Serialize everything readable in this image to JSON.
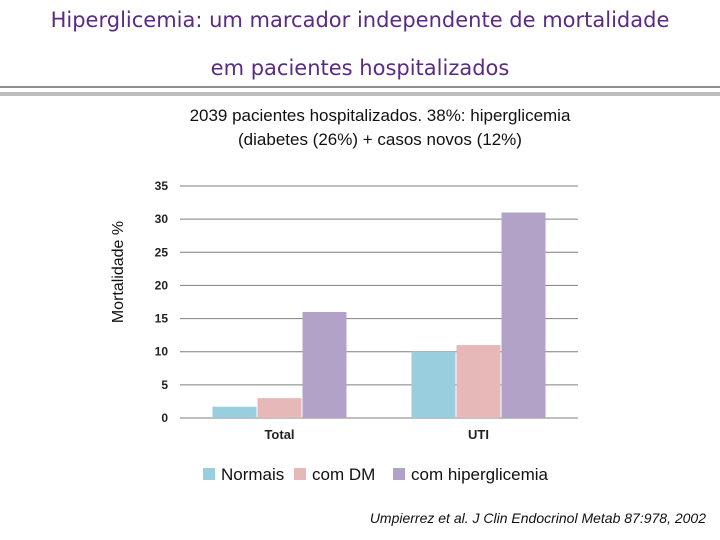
{
  "header": {
    "title_line1": "Hiperglicemia: um marcador independente de mortalidade",
    "title_line2": "em pacientes hospitalizados"
  },
  "subtitle": {
    "line1": "2039 pacientes hospitalizados. 38%: hiperglicemia",
    "line2": "(diabetes (26%) + casos novos (12%)"
  },
  "citation": "Umpierrez et al. J Clin Endocrinol Metab 87:978, 2002",
  "chart_data": {
    "type": "bar",
    "categories": [
      "Total",
      "UTI"
    ],
    "series": [
      {
        "name": "Normais",
        "values": [
          1.7,
          10
        ],
        "color": "#99cede"
      },
      {
        "name": "com DM",
        "values": [
          3,
          11
        ],
        "color": "#e6b8b7"
      },
      {
        "name": "com hiperglicemia",
        "values": [
          16,
          31
        ],
        "color": "#b3a2c7"
      }
    ],
    "xlabel": "",
    "ylabel": "Mortalidade %",
    "ylim": [
      0,
      35
    ],
    "yticks": [
      0,
      5,
      10,
      15,
      20,
      25,
      30,
      35
    ],
    "grid": true,
    "legend_position": "bottom"
  }
}
